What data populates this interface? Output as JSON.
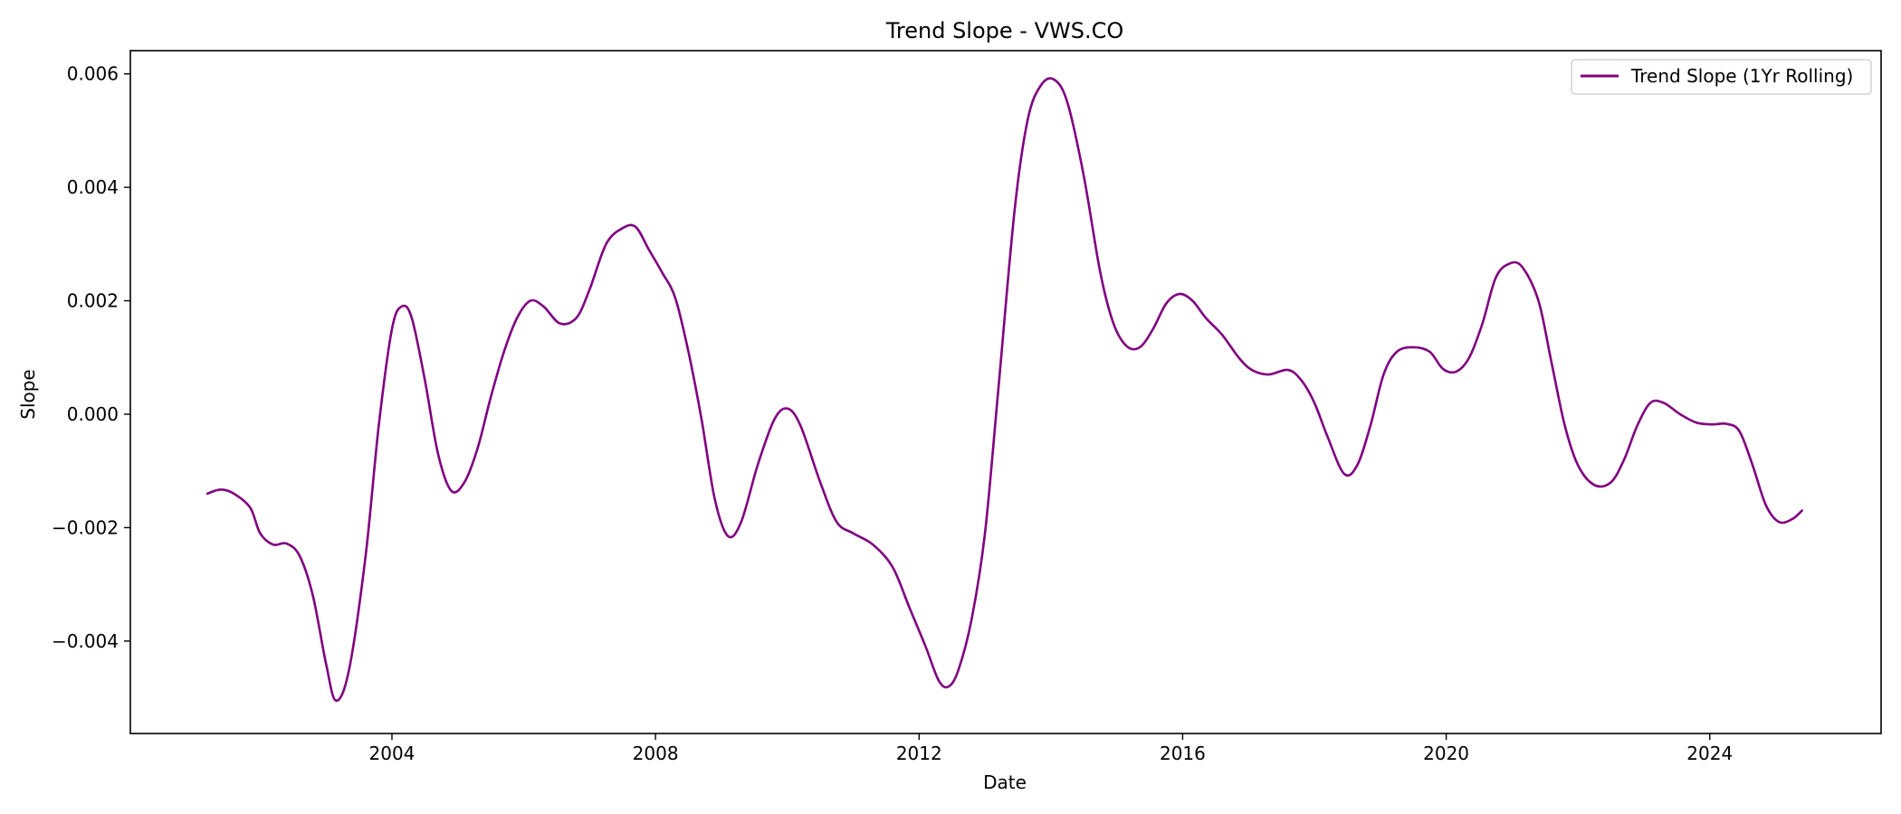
{
  "chart_data": {
    "type": "line",
    "title": "Trend Slope - VWS.CO",
    "xlabel": "Date",
    "ylabel": "Slope",
    "xlim": [
      2000.03,
      2026.6
    ],
    "ylim": [
      -0.00563,
      0.00641
    ],
    "x_ticks": [
      2004,
      2008,
      2012,
      2016,
      2020,
      2024
    ],
    "x_tick_labels": [
      "2004",
      "2008",
      "2012",
      "2016",
      "2020",
      "2024"
    ],
    "y_ticks": [
      -0.004,
      -0.002,
      0.0,
      0.002,
      0.004,
      0.006
    ],
    "y_tick_labels": [
      "−0.004",
      "−0.002",
      "0.000",
      "0.002",
      "0.004",
      "0.006"
    ],
    "grid": false,
    "legend": "top-right",
    "color": "#800080",
    "series": [
      {
        "name": "Trend Slope (1Yr Rolling)",
        "points": [
          [
            2001.2,
            -0.0014
          ],
          [
            2001.4,
            -0.00133
          ],
          [
            2001.6,
            -0.0014
          ],
          [
            2001.85,
            -0.00165
          ],
          [
            2002.0,
            -0.0021
          ],
          [
            2002.2,
            -0.0023
          ],
          [
            2002.4,
            -0.00228
          ],
          [
            2002.6,
            -0.0025
          ],
          [
            2002.8,
            -0.0032
          ],
          [
            2003.0,
            -0.0044
          ],
          [
            2003.15,
            -0.00505
          ],
          [
            2003.35,
            -0.0045
          ],
          [
            2003.6,
            -0.0025
          ],
          [
            2003.8,
            -0.0002
          ],
          [
            2004.0,
            0.0015
          ],
          [
            2004.15,
            0.0019
          ],
          [
            2004.3,
            0.0017
          ],
          [
            2004.5,
            0.0006
          ],
          [
            2004.7,
            -0.0007
          ],
          [
            2004.9,
            -0.00135
          ],
          [
            2005.1,
            -0.0012
          ],
          [
            2005.3,
            -0.0006
          ],
          [
            2005.5,
            0.0003
          ],
          [
            2005.7,
            0.0011
          ],
          [
            2005.9,
            0.0017
          ],
          [
            2006.1,
            0.002
          ],
          [
            2006.3,
            0.0019
          ],
          [
            2006.55,
            0.0016
          ],
          [
            2006.8,
            0.0017
          ],
          [
            2007.0,
            0.0022
          ],
          [
            2007.25,
            0.003
          ],
          [
            2007.5,
            0.00328
          ],
          [
            2007.7,
            0.0033
          ],
          [
            2007.9,
            0.0029
          ],
          [
            2008.1,
            0.0025
          ],
          [
            2008.3,
            0.00205
          ],
          [
            2008.5,
            0.0011
          ],
          [
            2008.7,
            -0.0001
          ],
          [
            2008.9,
            -0.0015
          ],
          [
            2009.1,
            -0.00215
          ],
          [
            2009.3,
            -0.0019
          ],
          [
            2009.55,
            -0.0009
          ],
          [
            2009.8,
            -0.0001
          ],
          [
            2010.0,
            0.0001
          ],
          [
            2010.2,
            -0.0002
          ],
          [
            2010.5,
            -0.0012
          ],
          [
            2010.75,
            -0.0019
          ],
          [
            2011.0,
            -0.0021
          ],
          [
            2011.3,
            -0.0023
          ],
          [
            2011.6,
            -0.0027
          ],
          [
            2011.85,
            -0.0034
          ],
          [
            2012.1,
            -0.0041
          ],
          [
            2012.3,
            -0.0047
          ],
          [
            2012.45,
            -0.0048
          ],
          [
            2012.6,
            -0.0045
          ],
          [
            2012.8,
            -0.0036
          ],
          [
            2013.0,
            -0.0021
          ],
          [
            2013.2,
            0.0004
          ],
          [
            2013.45,
            0.0036
          ],
          [
            2013.65,
            0.0052
          ],
          [
            2013.85,
            0.0058
          ],
          [
            2014.05,
            0.0059
          ],
          [
            2014.25,
            0.0055
          ],
          [
            2014.5,
            0.0042
          ],
          [
            2014.75,
            0.0025
          ],
          [
            2014.95,
            0.0016
          ],
          [
            2015.15,
            0.0012
          ],
          [
            2015.35,
            0.00118
          ],
          [
            2015.55,
            0.0015
          ],
          [
            2015.75,
            0.00195
          ],
          [
            2015.95,
            0.00212
          ],
          [
            2016.15,
            0.002
          ],
          [
            2016.35,
            0.0017
          ],
          [
            2016.6,
            0.0014
          ],
          [
            2016.85,
            0.001
          ],
          [
            2017.05,
            0.00078
          ],
          [
            2017.3,
            0.0007
          ],
          [
            2017.6,
            0.00078
          ],
          [
            2017.8,
            0.0006
          ],
          [
            2018.0,
            0.0002
          ],
          [
            2018.2,
            -0.0004
          ],
          [
            2018.45,
            -0.00105
          ],
          [
            2018.65,
            -0.0009
          ],
          [
            2018.85,
            -0.0002
          ],
          [
            2019.05,
            0.0007
          ],
          [
            2019.25,
            0.0011
          ],
          [
            2019.5,
            0.00118
          ],
          [
            2019.75,
            0.0011
          ],
          [
            2019.95,
            0.0008
          ],
          [
            2020.15,
            0.00075
          ],
          [
            2020.35,
            0.001
          ],
          [
            2020.55,
            0.0016
          ],
          [
            2020.75,
            0.0024
          ],
          [
            2020.95,
            0.00265
          ],
          [
            2021.15,
            0.0026
          ],
          [
            2021.4,
            0.002
          ],
          [
            2021.6,
            0.0009
          ],
          [
            2021.8,
            -0.0002
          ],
          [
            2022.0,
            -0.0009
          ],
          [
            2022.25,
            -0.00125
          ],
          [
            2022.5,
            -0.0012
          ],
          [
            2022.7,
            -0.0008
          ],
          [
            2022.9,
            -0.0002
          ],
          [
            2023.1,
            0.0002
          ],
          [
            2023.3,
            0.0002
          ],
          [
            2023.55,
            0.0
          ],
          [
            2023.8,
            -0.00015
          ],
          [
            2024.05,
            -0.00018
          ],
          [
            2024.25,
            -0.00017
          ],
          [
            2024.45,
            -0.0003
          ],
          [
            2024.65,
            -0.0009
          ],
          [
            2024.85,
            -0.0016
          ],
          [
            2025.05,
            -0.0019
          ],
          [
            2025.25,
            -0.00185
          ],
          [
            2025.4,
            -0.0017
          ]
        ]
      }
    ]
  }
}
